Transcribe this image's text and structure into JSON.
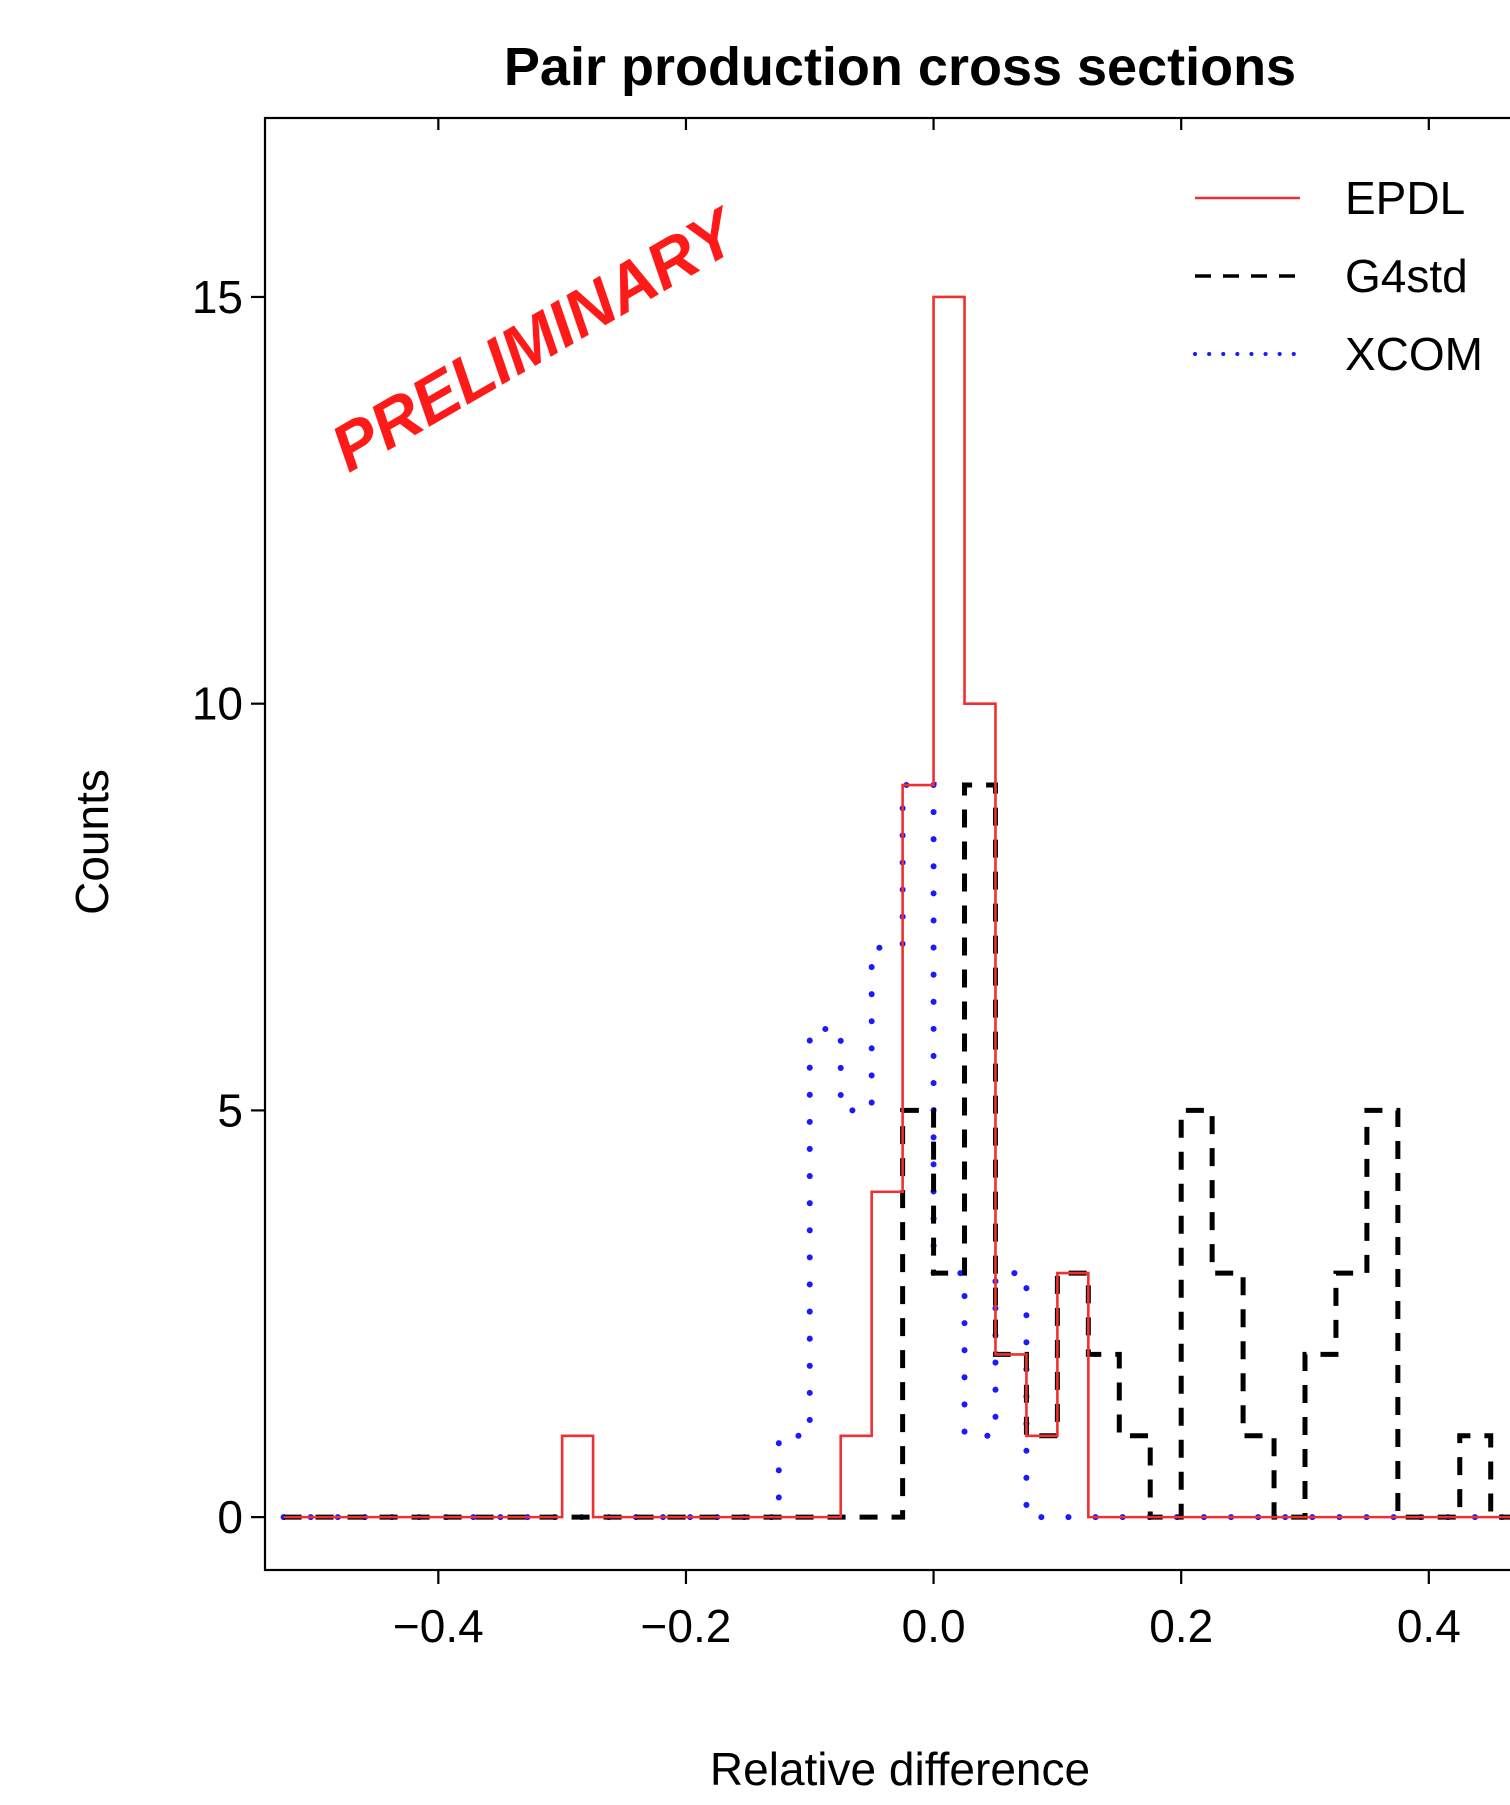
{
  "chart_data": {
    "type": "histogram",
    "title": "Pair production cross sections",
    "xlabel": "Relative difference",
    "ylabel": "Counts",
    "xlim": [
      -0.54,
      0.51
    ],
    "ylim": [
      -0.65,
      17.2
    ],
    "x_ticks": [
      -0.4,
      -0.2,
      0.0,
      0.2,
      0.4
    ],
    "x_tick_labels": [
      "−0.4",
      "−0.2",
      "0.0",
      "0.2",
      "0.4"
    ],
    "y_ticks": [
      0,
      5,
      10,
      15
    ],
    "y_tick_labels": [
      "0",
      "5",
      "10",
      "15"
    ],
    "bin_edges": [
      -0.525,
      -0.5,
      -0.475,
      -0.45,
      -0.425,
      -0.4,
      -0.375,
      -0.35,
      -0.325,
      -0.3,
      -0.275,
      -0.25,
      -0.225,
      -0.2,
      -0.175,
      -0.15,
      -0.125,
      -0.1,
      -0.075,
      -0.05,
      -0.025,
      0.0,
      0.025,
      0.05,
      0.075,
      0.1,
      0.125,
      0.15,
      0.175,
      0.2,
      0.225,
      0.25,
      0.275,
      0.3,
      0.325,
      0.35,
      0.375,
      0.4,
      0.425,
      0.45,
      0.475,
      0.5
    ],
    "series": [
      {
        "name": "EPDL",
        "color": "#f03030",
        "style": "solid",
        "counts": [
          0,
          0,
          0,
          0,
          0,
          0,
          0,
          0,
          0,
          1,
          0,
          0,
          0,
          0,
          0,
          0,
          0,
          0,
          1,
          4,
          9,
          15,
          10,
          2,
          1,
          3,
          0,
          0,
          0,
          0,
          0,
          0,
          0,
          0,
          0,
          0,
          0,
          0,
          0,
          0,
          0
        ]
      },
      {
        "name": "G4std",
        "color": "#000000",
        "style": "dashed",
        "counts": [
          0,
          0,
          0,
          0,
          0,
          0,
          0,
          0,
          0,
          0,
          0,
          0,
          0,
          0,
          0,
          0,
          0,
          0,
          0,
          0,
          5,
          3,
          9,
          2,
          1,
          3,
          2,
          1,
          0,
          5,
          3,
          1,
          0,
          2,
          3,
          5,
          0,
          0,
          1,
          0,
          0
        ]
      },
      {
        "name": "XCOM",
        "color": "#1a1aff",
        "style": "dotted",
        "counts": [
          0,
          0,
          0,
          0,
          0,
          0,
          0,
          0,
          0,
          0,
          0,
          0,
          0,
          0,
          0,
          0,
          1,
          6,
          5,
          7,
          9,
          3,
          1,
          3,
          0,
          0,
          0,
          0,
          0,
          0,
          0,
          0,
          0,
          0,
          0,
          0,
          0,
          0,
          0,
          0,
          0
        ]
      }
    ],
    "legend": {
      "position": "top-right",
      "entries": [
        "EPDL",
        "G4std",
        "XCOM"
      ]
    },
    "annotation": {
      "text": "PRELIMINARY",
      "color": "#ff1a1a"
    },
    "grid": false
  }
}
